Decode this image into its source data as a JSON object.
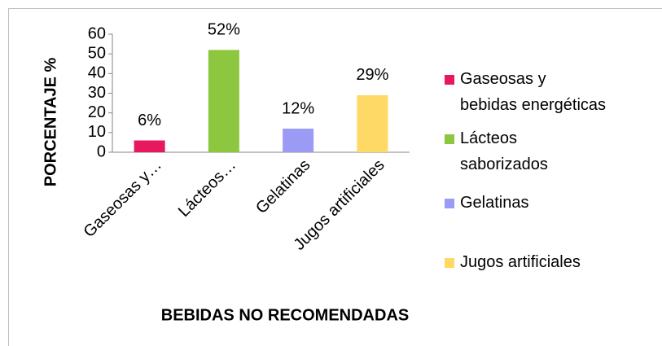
{
  "chart_data": {
    "type": "bar",
    "categories": [
      "Gaseosas y…",
      "Lácteos…",
      "Gelatinas",
      "Jugos artificiales"
    ],
    "values": [
      6,
      52,
      12,
      29
    ],
    "value_labels": [
      "6%",
      "52%",
      "12%",
      "29%"
    ],
    "colors": [
      "#e8185f",
      "#8dc63f",
      "#9b9bf5",
      "#ffd966"
    ],
    "legend": [
      "Gaseosas y bebidas energéticas",
      "Lácteos saborizados",
      "Gelatinas",
      "Jugos artificiales"
    ],
    "xlabel": "BEBIDAS NO RECOMENDADAS",
    "ylabel": "PORCENTAJE %",
    "ylim": [
      0,
      60
    ],
    "yticks": [
      0,
      10,
      20,
      30,
      40,
      50,
      60
    ]
  }
}
